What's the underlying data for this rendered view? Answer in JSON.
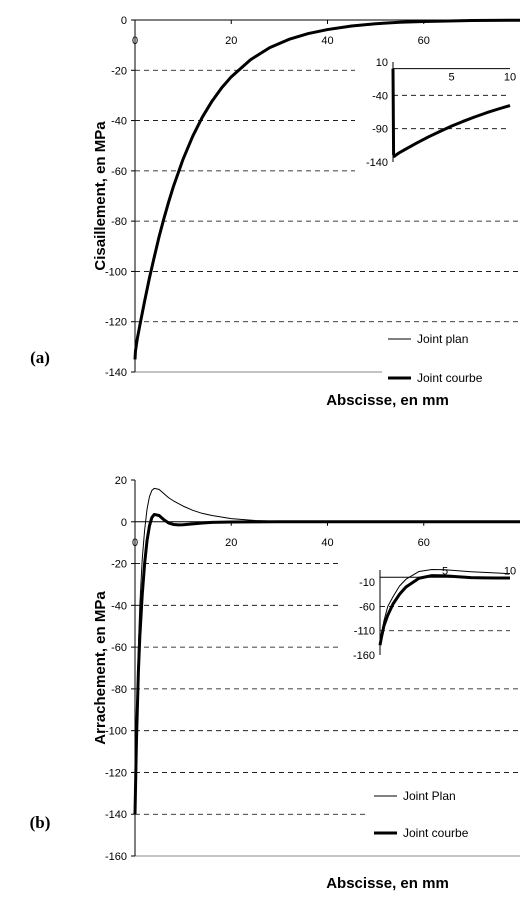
{
  "chart_data": [
    {
      "type": "line",
      "panel_label": "(a)",
      "xlabel": "Abscisse, en mm",
      "ylabel": "Cisaillement, en MPa",
      "xlim": [
        0,
        80
      ],
      "ylim": [
        -140,
        0
      ],
      "x_ticks": [
        "0",
        "20",
        "40",
        "60"
      ],
      "y_ticks": [
        "0",
        "-20",
        "-40",
        "-60",
        "-80",
        "-100",
        "-120",
        "-140"
      ],
      "grid": "horizontal dashed",
      "legend_position": "bottom-right",
      "series": [
        {
          "name": "Joint plan",
          "style": "thin",
          "x": [
            0,
            0.1,
            0.5,
            1,
            2,
            3,
            4,
            5,
            6,
            7,
            8,
            10,
            12,
            14,
            16,
            18,
            20,
            24,
            28,
            32,
            36,
            40,
            45,
            50,
            55,
            60,
            70,
            80
          ],
          "y": [
            -135,
            -131.6,
            -126.5,
            -121.5,
            -111.8,
            -102.6,
            -94.3,
            -86.2,
            -79.0,
            -72.3,
            -66.1,
            -55.3,
            -46.2,
            -38.6,
            -32.3,
            -27.0,
            -22.6,
            -15.8,
            -11.0,
            -7.7,
            -5.4,
            -3.8,
            -2.4,
            -1.5,
            -0.9,
            -0.6,
            -0.2,
            -0.1
          ]
        },
        {
          "name": "Joint courbe",
          "style": "thick",
          "x": [
            0,
            0.1,
            0.5,
            1,
            2,
            3,
            4,
            5,
            6,
            7,
            8,
            10,
            12,
            14,
            16,
            18,
            20,
            24,
            28,
            32,
            36,
            40,
            45,
            50,
            55,
            60,
            70,
            80
          ],
          "y": [
            -135,
            -131.6,
            -126.5,
            -121.5,
            -111.8,
            -102.6,
            -94.3,
            -86.2,
            -79.0,
            -72.3,
            -66.1,
            -55.3,
            -46.2,
            -38.6,
            -32.3,
            -27.0,
            -22.6,
            -15.8,
            -11.0,
            -7.7,
            -5.4,
            -3.8,
            -2.4,
            -1.5,
            -0.9,
            -0.6,
            -0.2,
            -0.1
          ]
        }
      ],
      "inset": {
        "xlim": [
          0,
          10
        ],
        "ylim": [
          -140,
          10
        ],
        "x_ticks": [
          "5",
          "10"
        ],
        "y_ticks": [
          "10",
          "-40",
          "-90",
          "-140"
        ],
        "series": [
          {
            "name": "Joint plan",
            "style": "thin",
            "x": [
              0,
              0.05,
              0.1,
              0.3,
              0.5,
              1,
              2,
              3,
              4,
              5,
              6,
              7,
              8,
              9,
              10
            ],
            "y": [
              0,
              -128,
              -131.6,
              -129,
              -126.5,
              -121.5,
              -111.8,
              -102.6,
              -94.3,
              -86.2,
              -79.0,
              -72.3,
              -66.1,
              -60.5,
              -55.3
            ]
          },
          {
            "name": "Joint courbe",
            "style": "thick",
            "x": [
              0,
              0.05,
              0.1,
              0.3,
              0.5,
              1,
              2,
              3,
              4,
              5,
              6,
              7,
              8,
              9,
              10
            ],
            "y": [
              0,
              -128,
              -131.6,
              -129,
              -126.5,
              -121.5,
              -111.8,
              -102.6,
              -94.3,
              -86.2,
              -79.0,
              -72.3,
              -66.1,
              -60.5,
              -55.3
            ]
          }
        ]
      }
    },
    {
      "type": "line",
      "panel_label": "(b)",
      "xlabel": "Abscisse, en mm",
      "ylabel": "Arrachement, en MPa",
      "xlim": [
        0,
        80
      ],
      "ylim": [
        -160,
        20
      ],
      "x_ticks": [
        "0",
        "20",
        "40",
        "60"
      ],
      "y_ticks": [
        "20",
        "0",
        "-20",
        "-40",
        "-60",
        "-80",
        "-100",
        "-120",
        "-140",
        "-160"
      ],
      "grid": "horizontal dashed",
      "legend_position": "bottom-right",
      "series": [
        {
          "name": "Joint Plan",
          "style": "thin",
          "x": [
            0,
            0.3,
            0.7,
            1,
            1.5,
            2,
            2.5,
            3,
            3.5,
            4,
            5,
            6,
            7,
            8,
            10,
            12,
            14,
            16,
            20,
            25,
            30,
            40,
            50,
            60,
            80
          ],
          "y": [
            -140,
            -95,
            -60,
            -40,
            -18,
            -4,
            6,
            12,
            15,
            16,
            15.5,
            13.5,
            11.5,
            10,
            7.5,
            5.5,
            4,
            3,
            1.5,
            0.6,
            0.2,
            0,
            0,
            0,
            0
          ]
        },
        {
          "name": "Joint courbe",
          "style": "thick",
          "x": [
            0,
            0.3,
            0.7,
            1,
            1.5,
            2,
            2.5,
            3,
            3.5,
            4,
            5,
            6,
            7,
            8,
            9,
            10,
            12,
            14,
            16,
            20,
            30,
            40,
            60,
            80
          ],
          "y": [
            -140,
            -105,
            -72,
            -55,
            -35,
            -20,
            -9,
            -2,
            2,
            3.5,
            3,
            1,
            -0.6,
            -1.3,
            -1.5,
            -1.4,
            -1.0,
            -0.6,
            -0.3,
            -0.1,
            0,
            0,
            0,
            0
          ]
        }
      ],
      "inset": {
        "xlim": [
          0,
          10
        ],
        "ylim": [
          -160,
          15
        ],
        "x_ticks": [
          "5",
          "10"
        ],
        "y_ticks": [
          "-10",
          "-60",
          "-110",
          "-160"
        ],
        "series": [
          {
            "name": "Joint Plan",
            "style": "thin",
            "x": [
              0,
              0.1,
              0.3,
              0.6,
              1,
              1.5,
              2,
              3,
              4,
              5,
              6,
              7,
              8,
              9,
              10
            ],
            "y": [
              -140,
              -120,
              -90,
              -60,
              -40,
              -18,
              -4,
              12,
              16,
              15.5,
              13.5,
              11.5,
              10,
              8.7,
              7.5
            ]
          },
          {
            "name": "Joint courbe",
            "style": "thick",
            "x": [
              0,
              0.1,
              0.3,
              0.6,
              1,
              1.5,
              2,
              3,
              4,
              5,
              6,
              7,
              8,
              9,
              10
            ],
            "y": [
              -140,
              -125,
              -100,
              -78,
              -55,
              -35,
              -20,
              -2,
              3.5,
              3,
              1,
              -0.6,
              -1.3,
              -1.5,
              -1.4
            ]
          }
        ]
      }
    }
  ]
}
